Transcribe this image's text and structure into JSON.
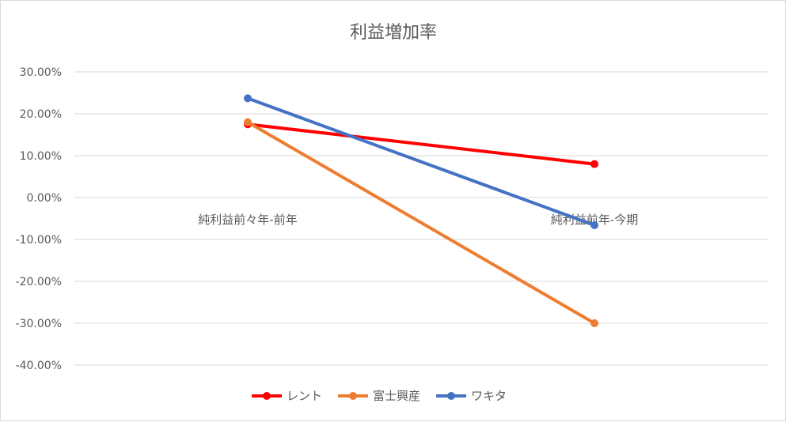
{
  "chart_data": {
    "type": "line",
    "title": "利益増加率",
    "xlabel": "",
    "ylabel": "",
    "categories": [
      "純利益前々年-前年",
      "純利益前年-今期"
    ],
    "y_ticks": [
      "30.00%",
      "20.00%",
      "10.00%",
      "0.00%",
      "-10.00%",
      "-20.00%",
      "-30.00%",
      "-40.00%"
    ],
    "ylim": [
      -0.4,
      0.3
    ],
    "grid": true,
    "legend_position": "bottom",
    "series": [
      {
        "name": "レント",
        "color": "#ff0000",
        "values": [
          0.175,
          0.08
        ]
      },
      {
        "name": "富士興産",
        "color": "#ed7d31",
        "values": [
          0.18,
          -0.3
        ]
      },
      {
        "name": "ワキタ",
        "color": "#4472c4",
        "values": [
          0.237,
          -0.066
        ]
      }
    ]
  }
}
